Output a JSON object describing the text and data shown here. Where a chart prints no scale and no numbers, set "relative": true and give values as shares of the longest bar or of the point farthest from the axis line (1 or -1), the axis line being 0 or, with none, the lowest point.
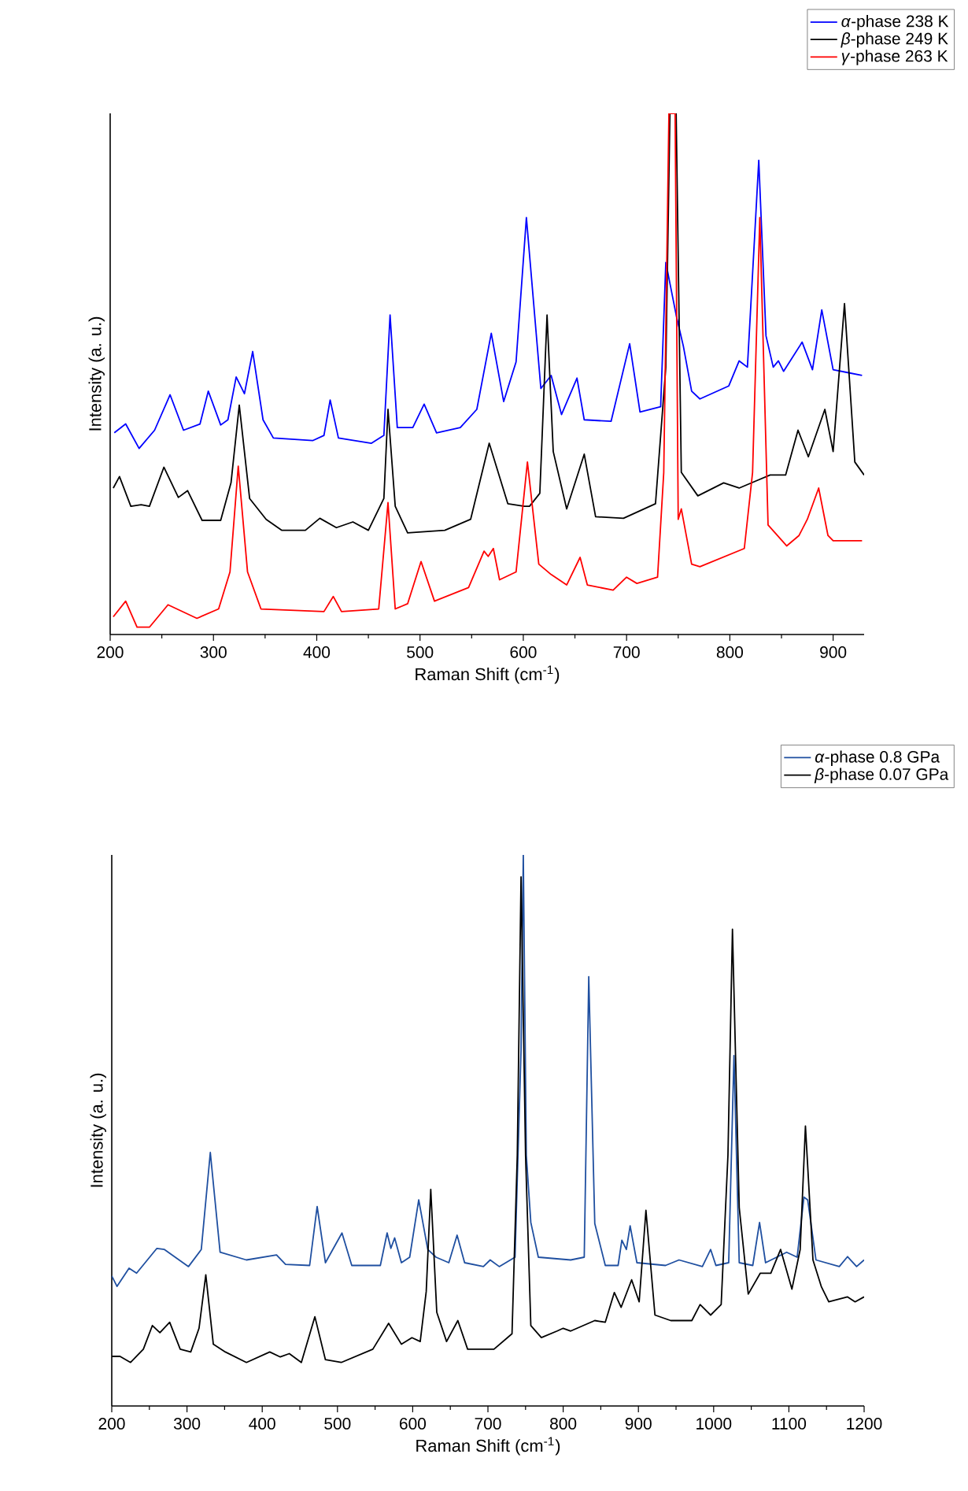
{
  "chart_data": [
    {
      "type": "line",
      "relative": true,
      "xlabel": "Raman Shift (cm$^{-1}$)",
      "ylabel": "Intensity (a. u.)",
      "xlim": [
        200,
        930
      ],
      "xticks": [
        200,
        300,
        400,
        500,
        600,
        700,
        800,
        900
      ],
      "legend": "top right",
      "grid": false,
      "marker": "none",
      "line_style": "solid",
      "series": [
        {
          "name": "*α*-phase 238 K",
          "color": "#0000ff",
          "x": [
            204,
            215,
            228,
            243,
            258,
            271,
            287,
            295,
            307,
            314,
            322,
            330,
            338,
            348,
            358,
            396,
            407,
            413,
            421,
            453,
            465,
            471,
            478,
            493,
            504,
            516,
            539,
            555,
            569,
            581,
            593,
            603,
            617,
            627,
            637,
            652,
            659,
            685,
            703,
            713,
            733,
            738,
            742,
            748,
            755,
            763,
            771,
            799,
            809,
            817,
            824,
            828,
            835,
            842,
            847,
            852,
            870,
            880,
            889,
            900,
            913,
            928
          ],
          "values": [
            0.387,
            0.404,
            0.357,
            0.392,
            0.46,
            0.392,
            0.404,
            0.467,
            0.402,
            0.412,
            0.494,
            0.462,
            0.543,
            0.412,
            0.377,
            0.372,
            0.382,
            0.45,
            0.377,
            0.367,
            0.382,
            0.613,
            0.397,
            0.397,
            0.442,
            0.387,
            0.397,
            0.432,
            0.578,
            0.447,
            0.523,
            0.8,
            0.472,
            0.497,
            0.422,
            0.492,
            0.412,
            0.409,
            0.558,
            0.427,
            0.437,
            0.714,
            null,
            0.613,
            0.553,
            0.467,
            0.452,
            0.477,
            0.525,
            0.513,
            0.764,
            0.91,
            0.573,
            0.513,
            0.525,
            0.505,
            0.561,
            0.508,
            0.623,
            0.508,
            0.503,
            0.497
          ]
        },
        {
          "name": "*β*-phase 249 K",
          "color": "#000000",
          "x": [
            203,
            209,
            220,
            230,
            238,
            252,
            266,
            275,
            289,
            307,
            317,
            325,
            335,
            351,
            366,
            389,
            403,
            419,
            435,
            450,
            465,
            469,
            476,
            488,
            524,
            549,
            567,
            585,
            601,
            606,
            616,
            623,
            629,
            642,
            659,
            670,
            697,
            728,
            738,
            742,
            748,
            753,
            769,
            794,
            809,
            827,
            839,
            854,
            866,
            876,
            892,
            900,
            911,
            921,
            930
          ],
          "values": [
            0.281,
            0.303,
            0.246,
            0.249,
            0.246,
            0.321,
            0.263,
            0.276,
            0.219,
            0.219,
            0.291,
            0.44,
            0.261,
            0.221,
            0.2,
            0.2,
            0.223,
            0.205,
            0.216,
            0.2,
            0.261,
            0.432,
            0.246,
            0.195,
            0.2,
            0.221,
            0.367,
            0.251,
            0.246,
            0.246,
            0.271,
            0.613,
            0.351,
            0.241,
            0.346,
            0.226,
            0.223,
            0.251,
            0.513,
            1.0,
            1.0,
            0.311,
            0.266,
            0.291,
            0.281,
            0.296,
            0.306,
            0.306,
            0.392,
            0.341,
            0.432,
            0.351,
            0.635,
            0.331,
            0.306
          ]
        },
        {
          "name": "*γ*-phase 263 K",
          "color": "#ff0000",
          "x": [
            203,
            215,
            226,
            238,
            256,
            284,
            305,
            316,
            324,
            333,
            346,
            407,
            416,
            424,
            460,
            469,
            476,
            488,
            501,
            514,
            547,
            562,
            566,
            571,
            577,
            593,
            604,
            615,
            627,
            642,
            655,
            662,
            687,
            700,
            710,
            730,
            736,
            741,
            747,
            750,
            753,
            763,
            771,
            814,
            822,
            829,
            837,
            846,
            855,
            867,
            875,
            886,
            895,
            900,
            928
          ],
          "values": [
            0.034,
            0.064,
            0.014,
            0.014,
            0.057,
            0.031,
            0.049,
            0.12,
            0.323,
            0.12,
            0.049,
            0.044,
            0.073,
            0.044,
            0.049,
            0.253,
            0.049,
            0.059,
            0.14,
            0.064,
            0.09,
            0.16,
            0.15,
            0.165,
            0.105,
            0.12,
            0.331,
            0.135,
            0.115,
            0.095,
            0.148,
            0.095,
            0.085,
            0.11,
            0.098,
            0.11,
            0.311,
            1.0,
            1.0,
            0.221,
            0.241,
            0.135,
            0.13,
            0.165,
            0.311,
            0.8,
            0.21,
            0.19,
            0.17,
            0.19,
            0.221,
            0.281,
            0.19,
            0.18,
            0.18
          ]
        }
      ]
    },
    {
      "type": "line",
      "relative": true,
      "xlabel": "Raman Shift (cm$^{-1}$)",
      "ylabel": "Intensity (a. u.)",
      "xlim": [
        200,
        1200
      ],
      "xticks": [
        200,
        300,
        400,
        500,
        600,
        700,
        800,
        900,
        1000,
        1100,
        1200
      ],
      "legend": "top right",
      "grid": false,
      "marker": "none",
      "line_style": "solid",
      "series": [
        {
          "name": "*α*-phase 0.8 GPa",
          "color": "#1f4fa0",
          "x": [
            200,
            207,
            223,
            233,
            260,
            270,
            302,
            319,
            331,
            344,
            379,
            419,
            431,
            463,
            473,
            484,
            506,
            519,
            557,
            566,
            571,
            576,
            585,
            596,
            608,
            620,
            631,
            648,
            659,
            669,
            694,
            703,
            715,
            736,
            744,
            747,
            751,
            757,
            767,
            810,
            828,
            834,
            842,
            856,
            873,
            878,
            884,
            889,
            898,
            936,
            954,
            985,
            996,
            1003,
            1020,
            1027,
            1034,
            1052,
            1061,
            1069,
            1097,
            1111,
            1120,
            1125,
            1136,
            1167,
            1178,
            1190,
            1200
          ],
          "values": [
            0.236,
            0.217,
            0.25,
            0.241,
            0.286,
            0.284,
            0.253,
            0.284,
            0.46,
            0.279,
            0.265,
            0.274,
            0.257,
            0.255,
            0.362,
            0.26,
            0.314,
            0.255,
            0.255,
            0.314,
            0.286,
            0.305,
            0.26,
            0.27,
            0.374,
            0.284,
            0.27,
            0.26,
            0.31,
            0.26,
            0.253,
            0.265,
            0.253,
            0.27,
            0.646,
            1.0,
            0.455,
            0.333,
            0.27,
            0.265,
            0.27,
            0.779,
            0.331,
            0.255,
            0.255,
            0.301,
            0.284,
            0.327,
            0.26,
            0.255,
            0.265,
            0.253,
            0.284,
            0.255,
            0.26,
            0.636,
            0.26,
            0.255,
            0.333,
            0.26,
            0.279,
            0.27,
            0.379,
            0.374,
            0.265,
            0.253,
            0.271,
            0.253,
            0.265
          ]
        },
        {
          "name": "*β*-phase 0.07 GPa",
          "color": "#000000",
          "x": [
            200,
            211,
            225,
            242,
            254,
            264,
            277,
            291,
            305,
            316,
            325,
            335,
            351,
            379,
            410,
            424,
            436,
            452,
            470,
            484,
            505,
            547,
            568,
            585,
            599,
            610,
            618,
            624,
            632,
            645,
            660,
            673,
            708,
            732,
            739,
            744,
            750,
            757,
            771,
            792,
            800,
            810,
            842,
            856,
            868,
            877,
            891,
            901,
            910,
            922,
            943,
            971,
            982,
            996,
            1010,
            1019,
            1025,
            1034,
            1046,
            1062,
            1076,
            1089,
            1104,
            1115,
            1122,
            1132,
            1143,
            1153,
            1178,
            1188,
            1200
          ],
          "values": [
            0.09,
            0.09,
            0.079,
            0.103,
            0.146,
            0.133,
            0.152,
            0.103,
            0.098,
            0.141,
            0.238,
            0.112,
            0.098,
            0.079,
            0.098,
            0.089,
            0.095,
            0.079,
            0.162,
            0.084,
            0.079,
            0.103,
            0.15,
            0.112,
            0.124,
            0.117,
            0.208,
            0.393,
            0.17,
            0.117,
            0.155,
            0.103,
            0.103,
            0.131,
            0.455,
            0.96,
            0.455,
            0.146,
            0.124,
            0.136,
            0.141,
            0.136,
            0.155,
            0.152,
            0.206,
            0.179,
            0.229,
            0.189,
            0.355,
            0.165,
            0.155,
            0.155,
            0.184,
            0.165,
            0.184,
            0.455,
            0.865,
            0.36,
            0.203,
            0.241,
            0.241,
            0.284,
            0.212,
            0.284,
            0.508,
            0.265,
            0.217,
            0.189,
            0.198,
            0.189,
            0.198
          ]
        }
      ]
    }
  ]
}
